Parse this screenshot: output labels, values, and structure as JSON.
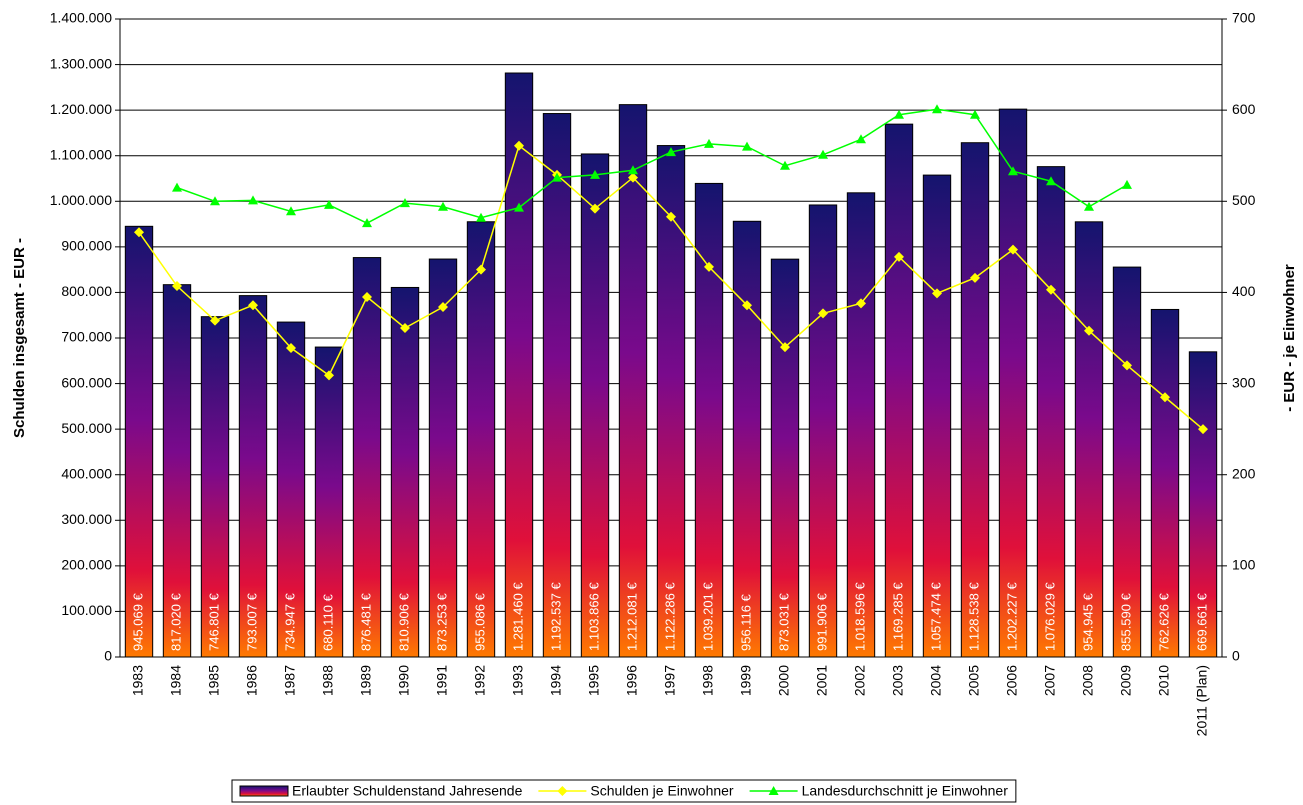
{
  "chart_data": {
    "type": "bar",
    "y_label": "Schulden insgesamt - EUR -",
    "y2_label": "- EUR - je Einwohner",
    "categories": [
      "1983",
      "1984",
      "1985",
      "1986",
      "1987",
      "1988",
      "1989",
      "1990",
      "1991",
      "1992",
      "1993",
      "1994",
      "1995",
      "1996",
      "1997",
      "1998",
      "1999",
      "2000",
      "2001",
      "2002",
      "2003",
      "2004",
      "2005",
      "2006",
      "2007",
      "2008",
      "2009",
      "2010",
      "2011 (Plan)"
    ],
    "series": [
      {
        "name": "Erlaubter Schuldenstand Jahresende",
        "type": "bar",
        "color": "#7a0a8c",
        "values": [
          945069,
          817020,
          746801,
          793007,
          734947,
          680110,
          876481,
          810906,
          873253,
          955086,
          1281460,
          1192537,
          1103866,
          1212081,
          1122286,
          1039201,
          956116,
          873031,
          991906,
          1018596,
          1169285,
          1057474,
          1128538,
          1202227,
          1076029,
          954945,
          855590,
          762626,
          669661
        ],
        "value_labels": [
          "945.069 €",
          "817.020 €",
          "746.801 €",
          "793.007 €",
          "734.947 €",
          "680.110 €",
          "876.481 €",
          "810.906 €",
          "873.253 €",
          "955.086 €",
          "1.281.460 €",
          "1.192.537 €",
          "1.103.866 €",
          "1.212.081 €",
          "1.122.286 €",
          "1.039.201 €",
          "956.116 €",
          "873.031 €",
          "991.906 €",
          "1.018.596 €",
          "1.169.285 €",
          "1.057.474 €",
          "1.128.538 €",
          "1.202.227 €",
          "1.076.029 €",
          "954.945 €",
          "855.590 €",
          "762.626 €",
          "669.661 €"
        ]
      },
      {
        "name": "Schulden je Einwohner",
        "type": "line",
        "axis": "y2",
        "color": "#ffff00",
        "marker": "diamond",
        "values": [
          466,
          407,
          369,
          386,
          339,
          309,
          395,
          361,
          384,
          425,
          561,
          529,
          492,
          526,
          483,
          428,
          386,
          340,
          377,
          388,
          439,
          399,
          416,
          447,
          403,
          358,
          320,
          285,
          250
        ]
      },
      {
        "name": "Landesdurchschnitt je Einwohner",
        "type": "line",
        "axis": "y2",
        "color": "#00ff00",
        "marker": "triangle",
        "values": [
          null,
          515,
          500,
          501,
          489,
          496,
          476,
          498,
          494,
          482,
          493,
          526,
          529,
          534,
          554,
          563,
          560,
          539,
          551,
          568,
          595,
          601,
          595,
          533,
          522,
          494,
          518,
          null,
          null
        ]
      }
    ],
    "ylim": [
      0,
      1400000
    ],
    "yticks": [
      0,
      {
        "value": 100000,
        "label": "100.000"
      },
      {
        "value": 200000,
        "label": "200.000"
      },
      {
        "value": 300000,
        "label": "300.000"
      },
      {
        "value": 400000,
        "label": "400.000"
      },
      {
        "value": 500000,
        "label": "500.000"
      },
      {
        "value": 600000,
        "label": "600.000"
      },
      {
        "value": 700000,
        "label": "700.000"
      },
      {
        "value": 800000,
        "label": "800.000"
      },
      {
        "value": 900000,
        "label": "900.000"
      },
      {
        "value": 1000000,
        "label": "1.000.000"
      },
      {
        "value": 1100000,
        "label": "1.100.000"
      },
      {
        "value": 1200000,
        "label": "1.200.000"
      },
      {
        "value": 1300000,
        "label": "1.300.000"
      },
      {
        "value": 1400000,
        "label": "1.400.000"
      }
    ],
    "y2lim": [
      0,
      700
    ],
    "y2ticks": [
      0,
      100,
      200,
      300,
      400,
      500,
      600,
      700
    ],
    "grid": true,
    "legend": "bottom"
  }
}
